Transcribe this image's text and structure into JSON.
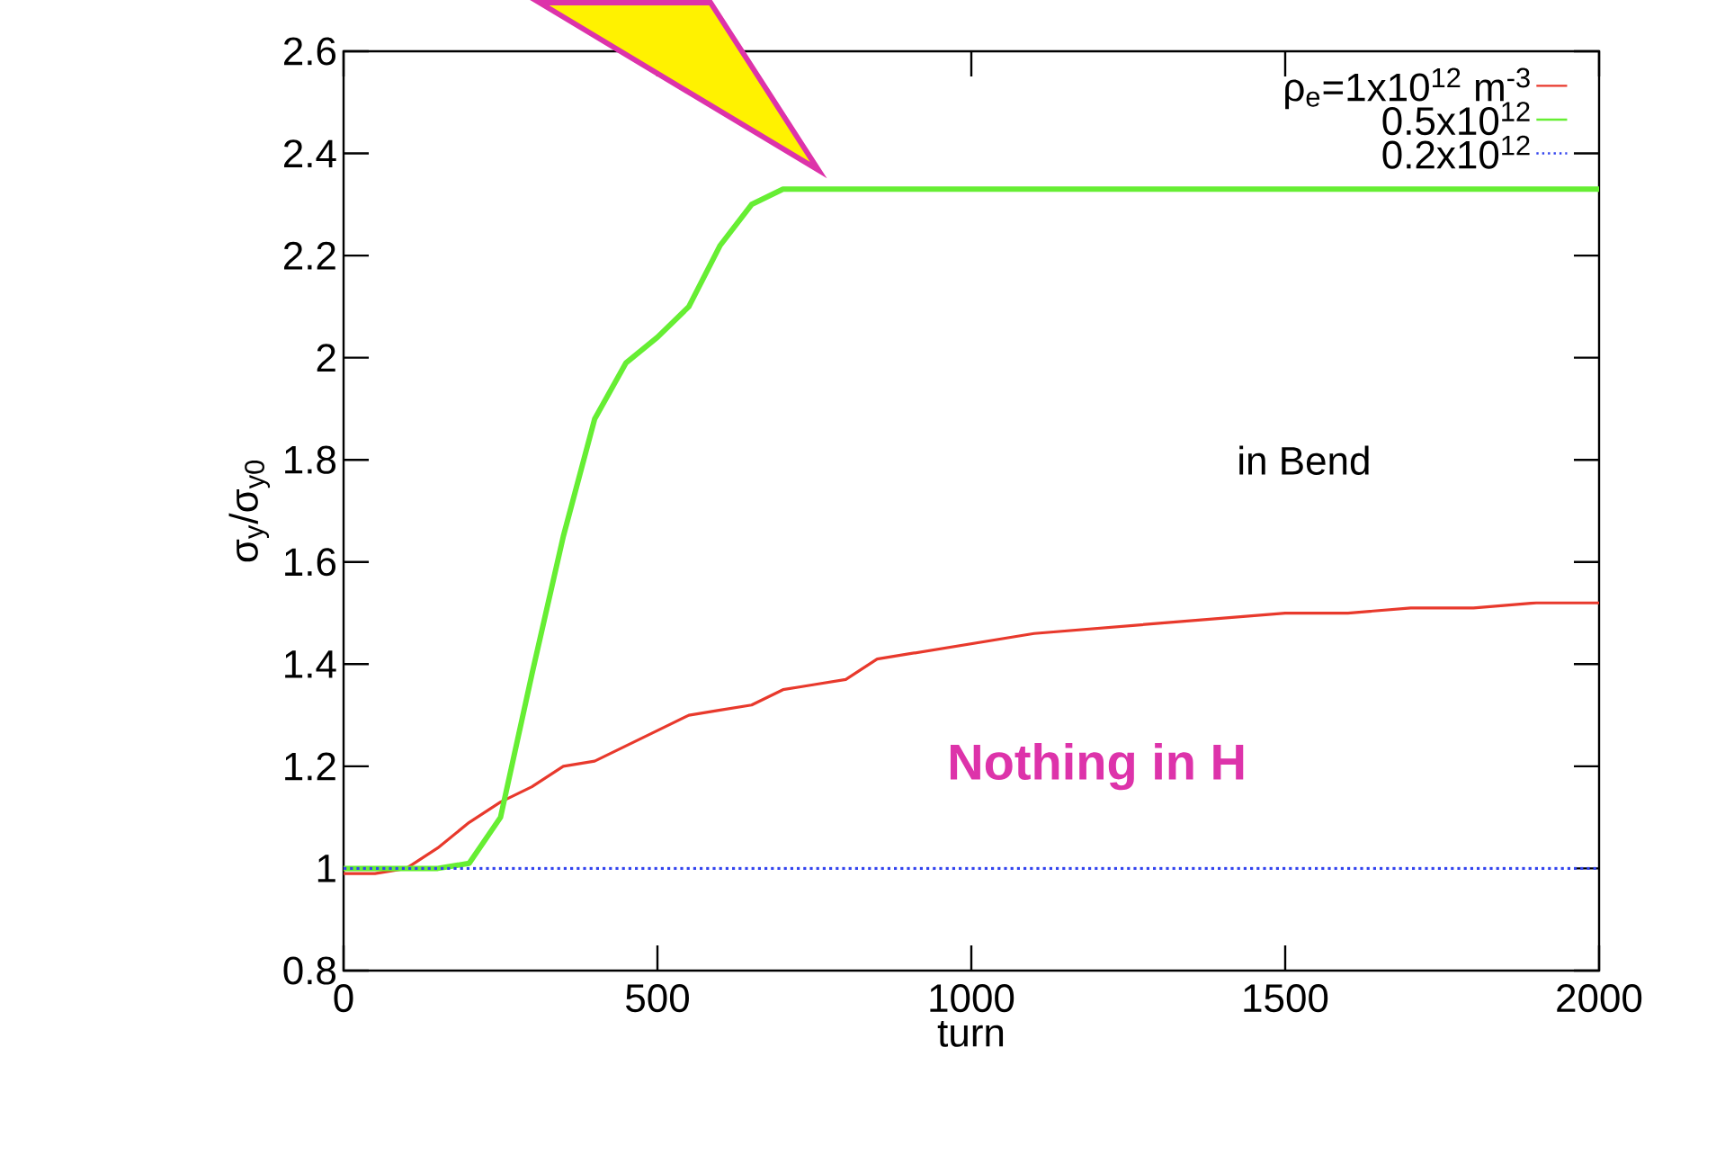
{
  "chart_data": {
    "type": "line",
    "xlabel": "turn",
    "ylabel": "σ$_{y}$/σ$_{y0}$",
    "xlim": [
      0,
      2000
    ],
    "ylim": [
      0.8,
      2.6
    ],
    "xticks": [
      0,
      500,
      1000,
      1500,
      2000
    ],
    "yticks": [
      0.8,
      1,
      1.2,
      1.4,
      1.6,
      1.8,
      2,
      2.2,
      2.4,
      2.6
    ],
    "legend": "top right",
    "grid": false,
    "marker": "none",
    "x": [
      0,
      50,
      100,
      150,
      200,
      250,
      300,
      350,
      400,
      450,
      500,
      550,
      600,
      650,
      700,
      750,
      800,
      850,
      900,
      1000,
      1100,
      1200,
      1300,
      1400,
      1500,
      1600,
      1700,
      1800,
      1900,
      2000
    ],
    "series": [
      {
        "name": "ρ$_{e}$=1x10$^{12}$ m$^{-3}$",
        "color": "#e8392c",
        "line_style": "solid",
        "values": [
          0.99,
          0.99,
          1.0,
          1.04,
          1.09,
          1.13,
          1.16,
          1.2,
          1.21,
          1.24,
          1.27,
          1.3,
          1.31,
          1.32,
          1.35,
          1.36,
          1.37,
          1.41,
          1.42,
          1.44,
          1.46,
          1.47,
          1.48,
          1.49,
          1.5,
          1.5,
          1.51,
          1.51,
          1.52,
          1.52
        ]
      },
      {
        "name": "0.5x10$^{12}$",
        "color": "#66ee33",
        "line_style": "solid",
        "values": [
          1.0,
          1.0,
          1.0,
          1.0,
          1.01,
          1.1,
          1.38,
          1.65,
          1.88,
          1.99,
          2.04,
          2.1,
          2.22,
          2.3,
          2.33,
          2.33,
          2.33,
          2.33,
          2.33,
          2.33,
          2.33,
          2.33,
          2.33,
          2.33,
          2.33,
          2.33,
          2.33,
          2.33,
          2.33,
          2.33
        ]
      },
      {
        "name": "0.2x10$^{12}$",
        "color": "#3344ee",
        "line_style": "dotted",
        "values": [
          1,
          1,
          1,
          1,
          1,
          1,
          1,
          1,
          1,
          1,
          1,
          1,
          1,
          1,
          1,
          1,
          1,
          1,
          1,
          1,
          1,
          1,
          1,
          1,
          1,
          1,
          1,
          1,
          1,
          1
        ]
      }
    ],
    "annotations": [
      "in Bend",
      "Nothing in H"
    ]
  }
}
